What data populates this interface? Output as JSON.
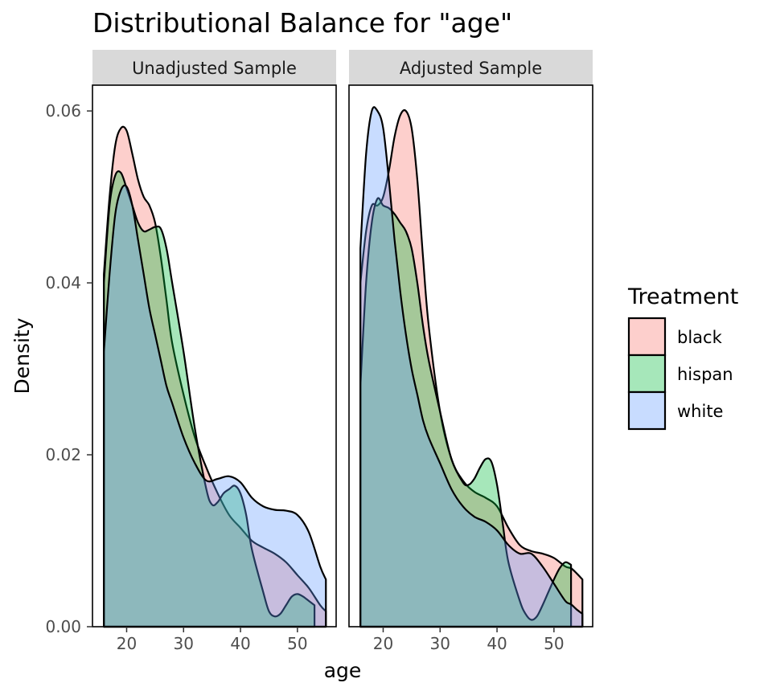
{
  "chart_data": {
    "type": "area",
    "title": "Distributional Balance for \"age\"",
    "xlabel": "age",
    "ylabel": "Density",
    "xlim": [
      14.0,
      56.8
    ],
    "ylim": [
      0,
      0.063
    ],
    "x_ticks": [
      20,
      30,
      40,
      50
    ],
    "x_tick_labels": [
      "20",
      "30",
      "40",
      "50"
    ],
    "y_ticks": [
      0.0,
      0.02,
      0.04,
      0.06
    ],
    "y_tick_labels": [
      "0.00",
      "0.02",
      "0.04",
      "0.06"
    ],
    "grid": false,
    "legend": {
      "title": "Treatment",
      "position": "right",
      "entries": [
        "black",
        "hispan",
        "white"
      ]
    },
    "colors": {
      "black": "#F8766D",
      "hispan": "#00BA38",
      "white": "#619CFF"
    },
    "fill_opacity": 0.35,
    "panels": [
      {
        "label": "Unadjusted Sample",
        "series": [
          {
            "name": "black",
            "x_range": [
              16,
              55
            ],
            "points": [
              [
                16,
                0.041
              ],
              [
                17,
                0.05
              ],
              [
                18,
                0.056
              ],
              [
                19,
                0.058
              ],
              [
                20,
                0.0577
              ],
              [
                21,
                0.055
              ],
              [
                22,
                0.052
              ],
              [
                23,
                0.05
              ],
              [
                24,
                0.049
              ],
              [
                25,
                0.047
              ],
              [
                26,
                0.043
              ],
              [
                27,
                0.038
              ],
              [
                28,
                0.033
              ],
              [
                30,
                0.027
              ],
              [
                32,
                0.022
              ],
              [
                34,
                0.0185
              ],
              [
                36,
                0.0155
              ],
              [
                38,
                0.013
              ],
              [
                40,
                0.0115
              ],
              [
                42,
                0.01
              ],
              [
                44,
                0.0092
              ],
              [
                46,
                0.0085
              ],
              [
                48,
                0.0075
              ],
              [
                50,
                0.006
              ],
              [
                52,
                0.0045
              ],
              [
                54,
                0.0025
              ],
              [
                55,
                0.0018
              ]
            ]
          },
          {
            "name": "hispan",
            "x_range": [
              16,
              53
            ],
            "points": [
              [
                16,
                0.04
              ],
              [
                17,
                0.049
              ],
              [
                18,
                0.0525
              ],
              [
                19,
                0.0528
              ],
              [
                20,
                0.051
              ],
              [
                21,
                0.049
              ],
              [
                22,
                0.047
              ],
              [
                23,
                0.046
              ],
              [
                24,
                0.0462
              ],
              [
                25,
                0.0465
              ],
              [
                26,
                0.0463
              ],
              [
                27,
                0.044
              ],
              [
                28,
                0.04
              ],
              [
                30,
                0.032
              ],
              [
                32,
                0.023
              ],
              [
                34,
                0.016
              ],
              [
                35,
                0.0142
              ],
              [
                36,
                0.0145
              ],
              [
                37,
                0.0155
              ],
              [
                38,
                0.016
              ],
              [
                39,
                0.0164
              ],
              [
                40,
                0.0155
              ],
              [
                41,
                0.013
              ],
              [
                42,
                0.009
              ],
              [
                44,
                0.004
              ],
              [
                45,
                0.0018
              ],
              [
                46,
                0.0012
              ],
              [
                47,
                0.0015
              ],
              [
                48,
                0.0025
              ],
              [
                49,
                0.0035
              ],
              [
                50,
                0.0038
              ],
              [
                51,
                0.0035
              ],
              [
                52,
                0.003
              ],
              [
                53,
                0.0025
              ]
            ]
          },
          {
            "name": "white",
            "x_range": [
              16,
              55
            ],
            "points": [
              [
                16,
                0.032
              ],
              [
                17,
                0.041
              ],
              [
                18,
                0.048
              ],
              [
                19,
                0.0508
              ],
              [
                20,
                0.0512
              ],
              [
                21,
                0.049
              ],
              [
                22,
                0.045
              ],
              [
                23,
                0.041
              ],
              [
                24,
                0.037
              ],
              [
                25,
                0.034
              ],
              [
                26,
                0.031
              ],
              [
                27,
                0.028
              ],
              [
                28,
                0.026
              ],
              [
                30,
                0.022
              ],
              [
                32,
                0.019
              ],
              [
                34,
                0.017
              ],
              [
                36,
                0.0172
              ],
              [
                38,
                0.0175
              ],
              [
                40,
                0.0168
              ],
              [
                42,
                0.015
              ],
              [
                44,
                0.014
              ],
              [
                46,
                0.0136
              ],
              [
                48,
                0.0135
              ],
              [
                50,
                0.013
              ],
              [
                52,
                0.011
              ],
              [
                54,
                0.007
              ],
              [
                55,
                0.0055
              ]
            ]
          }
        ]
      },
      {
        "label": "Adjusted Sample",
        "series": [
          {
            "name": "black",
            "x_range": [
              16,
              55
            ],
            "points": [
              [
                16,
                0.04
              ],
              [
                17,
                0.046
              ],
              [
                18,
                0.049
              ],
              [
                19,
                0.049
              ],
              [
                20,
                0.05
              ],
              [
                21,
                0.053
              ],
              [
                22,
                0.057
              ],
              [
                23,
                0.0595
              ],
              [
                24,
                0.06
              ],
              [
                25,
                0.058
              ],
              [
                26,
                0.052
              ],
              [
                27,
                0.043
              ],
              [
                28,
                0.035
              ],
              [
                30,
                0.025
              ],
              [
                32,
                0.0195
              ],
              [
                34,
                0.017
              ],
              [
                36,
                0.0157
              ],
              [
                38,
                0.015
              ],
              [
                40,
                0.014
              ],
              [
                42,
                0.0115
              ],
              [
                44,
                0.0095
              ],
              [
                46,
                0.0088
              ],
              [
                48,
                0.0085
              ],
              [
                50,
                0.008
              ],
              [
                52,
                0.007
              ],
              [
                53,
                0.0068
              ],
              [
                54,
                0.0062
              ],
              [
                55,
                0.0055
              ]
            ]
          },
          {
            "name": "hispan",
            "x_range": [
              16,
              53
            ],
            "points": [
              [
                16,
                0.028
              ],
              [
                17,
                0.04
              ],
              [
                18,
                0.047
              ],
              [
                19,
                0.0498
              ],
              [
                20,
                0.049
              ],
              [
                21,
                0.0487
              ],
              [
                22,
                0.048
              ],
              [
                23,
                0.047
              ],
              [
                24,
                0.046
              ],
              [
                25,
                0.044
              ],
              [
                26,
                0.04
              ],
              [
                27,
                0.035
              ],
              [
                28,
                0.031
              ],
              [
                30,
                0.025
              ],
              [
                32,
                0.0195
              ],
              [
                34,
                0.0168
              ],
              [
                35,
                0.0165
              ],
              [
                36,
                0.0172
              ],
              [
                37,
                0.0185
              ],
              [
                38,
                0.0195
              ],
              [
                39,
                0.0192
              ],
              [
                40,
                0.0165
              ],
              [
                41,
                0.012
              ],
              [
                42,
                0.0075
              ],
              [
                44,
                0.003
              ],
              [
                45,
                0.0015
              ],
              [
                46,
                0.0008
              ],
              [
                47,
                0.0012
              ],
              [
                48,
                0.0025
              ],
              [
                49,
                0.004
              ],
              [
                50,
                0.0055
              ],
              [
                51,
                0.0068
              ],
              [
                52,
                0.0075
              ],
              [
                53,
                0.0072
              ]
            ]
          },
          {
            "name": "white",
            "x_range": [
              16,
              55
            ],
            "points": [
              [
                16,
                0.044
              ],
              [
                17,
                0.055
              ],
              [
                18,
                0.06
              ],
              [
                19,
                0.06
              ],
              [
                20,
                0.058
              ],
              [
                21,
                0.052
              ],
              [
                22,
                0.045
              ],
              [
                23,
                0.039
              ],
              [
                24,
                0.034
              ],
              [
                25,
                0.03
              ],
              [
                26,
                0.027
              ],
              [
                27,
                0.024
              ],
              [
                28,
                0.022
              ],
              [
                30,
                0.019
              ],
              [
                32,
                0.016
              ],
              [
                34,
                0.014
              ],
              [
                36,
                0.0128
              ],
              [
                38,
                0.0122
              ],
              [
                40,
                0.0112
              ],
              [
                42,
                0.0095
              ],
              [
                44,
                0.0085
              ],
              [
                46,
                0.0085
              ],
              [
                48,
                0.007
              ],
              [
                50,
                0.005
              ],
              [
                52,
                0.003
              ],
              [
                53,
                0.0026
              ],
              [
                54,
                0.002
              ],
              [
                55,
                0.0015
              ]
            ]
          }
        ]
      }
    ]
  }
}
